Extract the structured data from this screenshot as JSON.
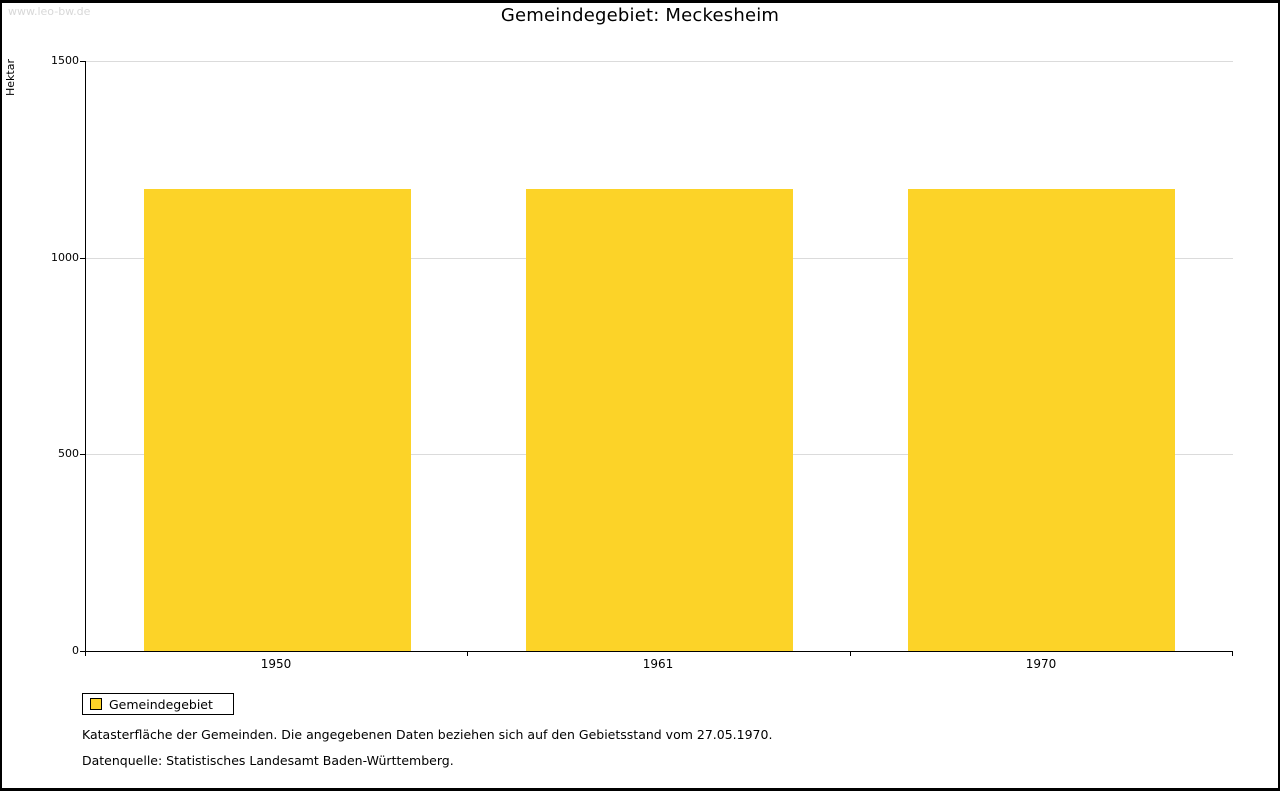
{
  "watermark": "www.leo-bw.de",
  "chart_data": {
    "type": "bar",
    "title": "Gemeindegebiet: Meckesheim",
    "ylabel": "Hektar",
    "categories": [
      "1950",
      "1961",
      "1970"
    ],
    "series": [
      {
        "name": "Gemeindegebiet",
        "values": [
          1175,
          1175,
          1175
        ]
      }
    ],
    "ylim": [
      0,
      1500
    ],
    "yticks": [
      0,
      500,
      1000,
      1500
    ],
    "grid": "horizontal-gridlines-at-yticks",
    "legend_position": "bottom-left",
    "bar_color": "#FCD328",
    "grid_color": "#DBDBDB"
  },
  "legend": {
    "label": "Gemeindegebiet"
  },
  "footnotes": {
    "line1": "Katasterfläche der Gemeinden. Die angegebenen Daten beziehen sich auf den Gebietsstand vom 27.05.1970.",
    "line2": "Datenquelle: Statistisches Landesamt Baden-Württemberg."
  }
}
